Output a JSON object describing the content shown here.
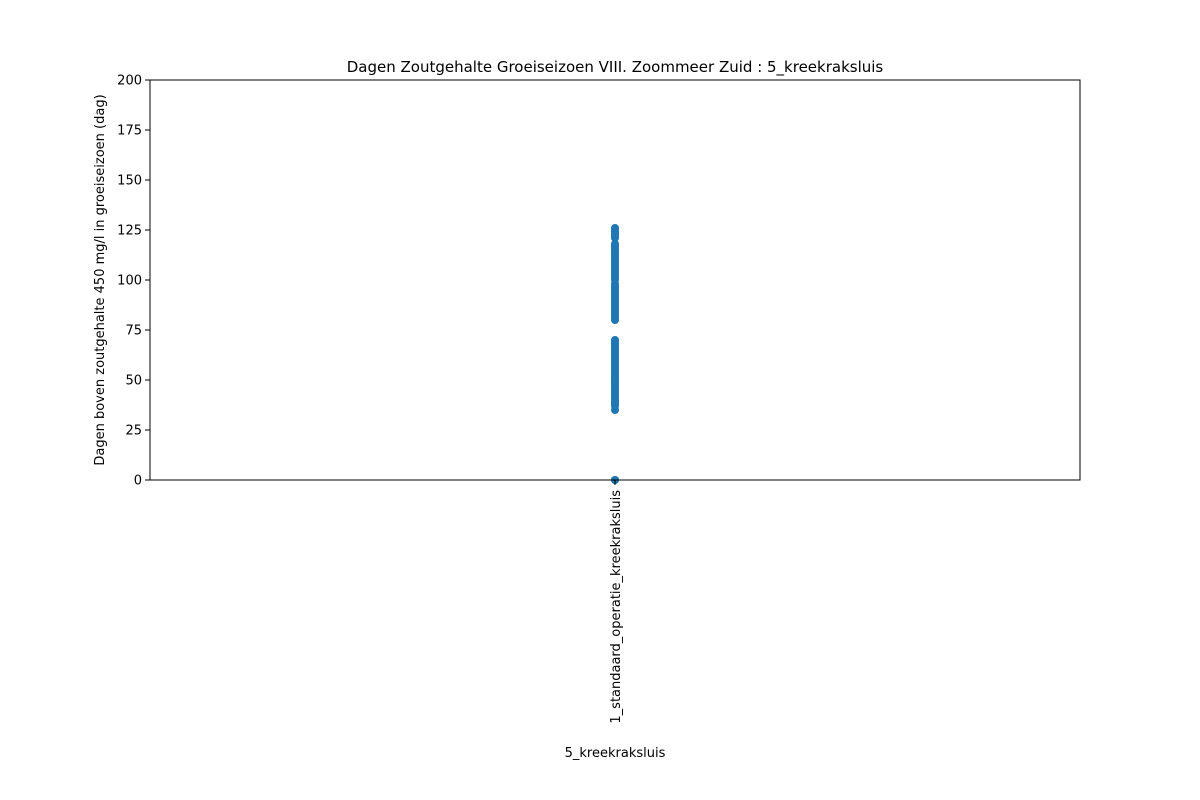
{
  "chart_data": {
    "type": "scatter",
    "title": "Dagen Zoutgehalte Groeiseizoen VIII. Zoommeer Zuid : 5_kreekraksluis",
    "xlabel": "5_kreekraksluis",
    "ylabel": "Dagen boven zoutgehalte 450 mg/l in groeiseizoen (dag)",
    "categories": [
      "1_standaard_operatie_kreekraksluis"
    ],
    "ylim": [
      0,
      200
    ],
    "yticks": [
      0,
      25,
      50,
      75,
      100,
      125,
      150,
      175,
      200
    ],
    "ytick_labels": [
      "0",
      "25",
      "50",
      "75",
      "100",
      "125",
      "150",
      "175",
      "200"
    ],
    "grid": false,
    "colors": {
      "points": "#1f77b4"
    },
    "series": [
      {
        "category": "1_standaard_operatie_kreekraksluis",
        "values": [
          0,
          0,
          35,
          37,
          38,
          39,
          40,
          41,
          42,
          43,
          44,
          45,
          46,
          47,
          48,
          49,
          50,
          51,
          52,
          53,
          54,
          55,
          56,
          57,
          58,
          59,
          60,
          61,
          62,
          63,
          64,
          65,
          66,
          67,
          68,
          69,
          70,
          80,
          81,
          82,
          83,
          84,
          85,
          86,
          87,
          88,
          89,
          90,
          91,
          92,
          93,
          94,
          95,
          96,
          97,
          98,
          100,
          101,
          102,
          103,
          104,
          105,
          106,
          107,
          108,
          109,
          110,
          111,
          112,
          113,
          114,
          115,
          116,
          117,
          118,
          121,
          122,
          123,
          124,
          125,
          126
        ]
      }
    ]
  }
}
